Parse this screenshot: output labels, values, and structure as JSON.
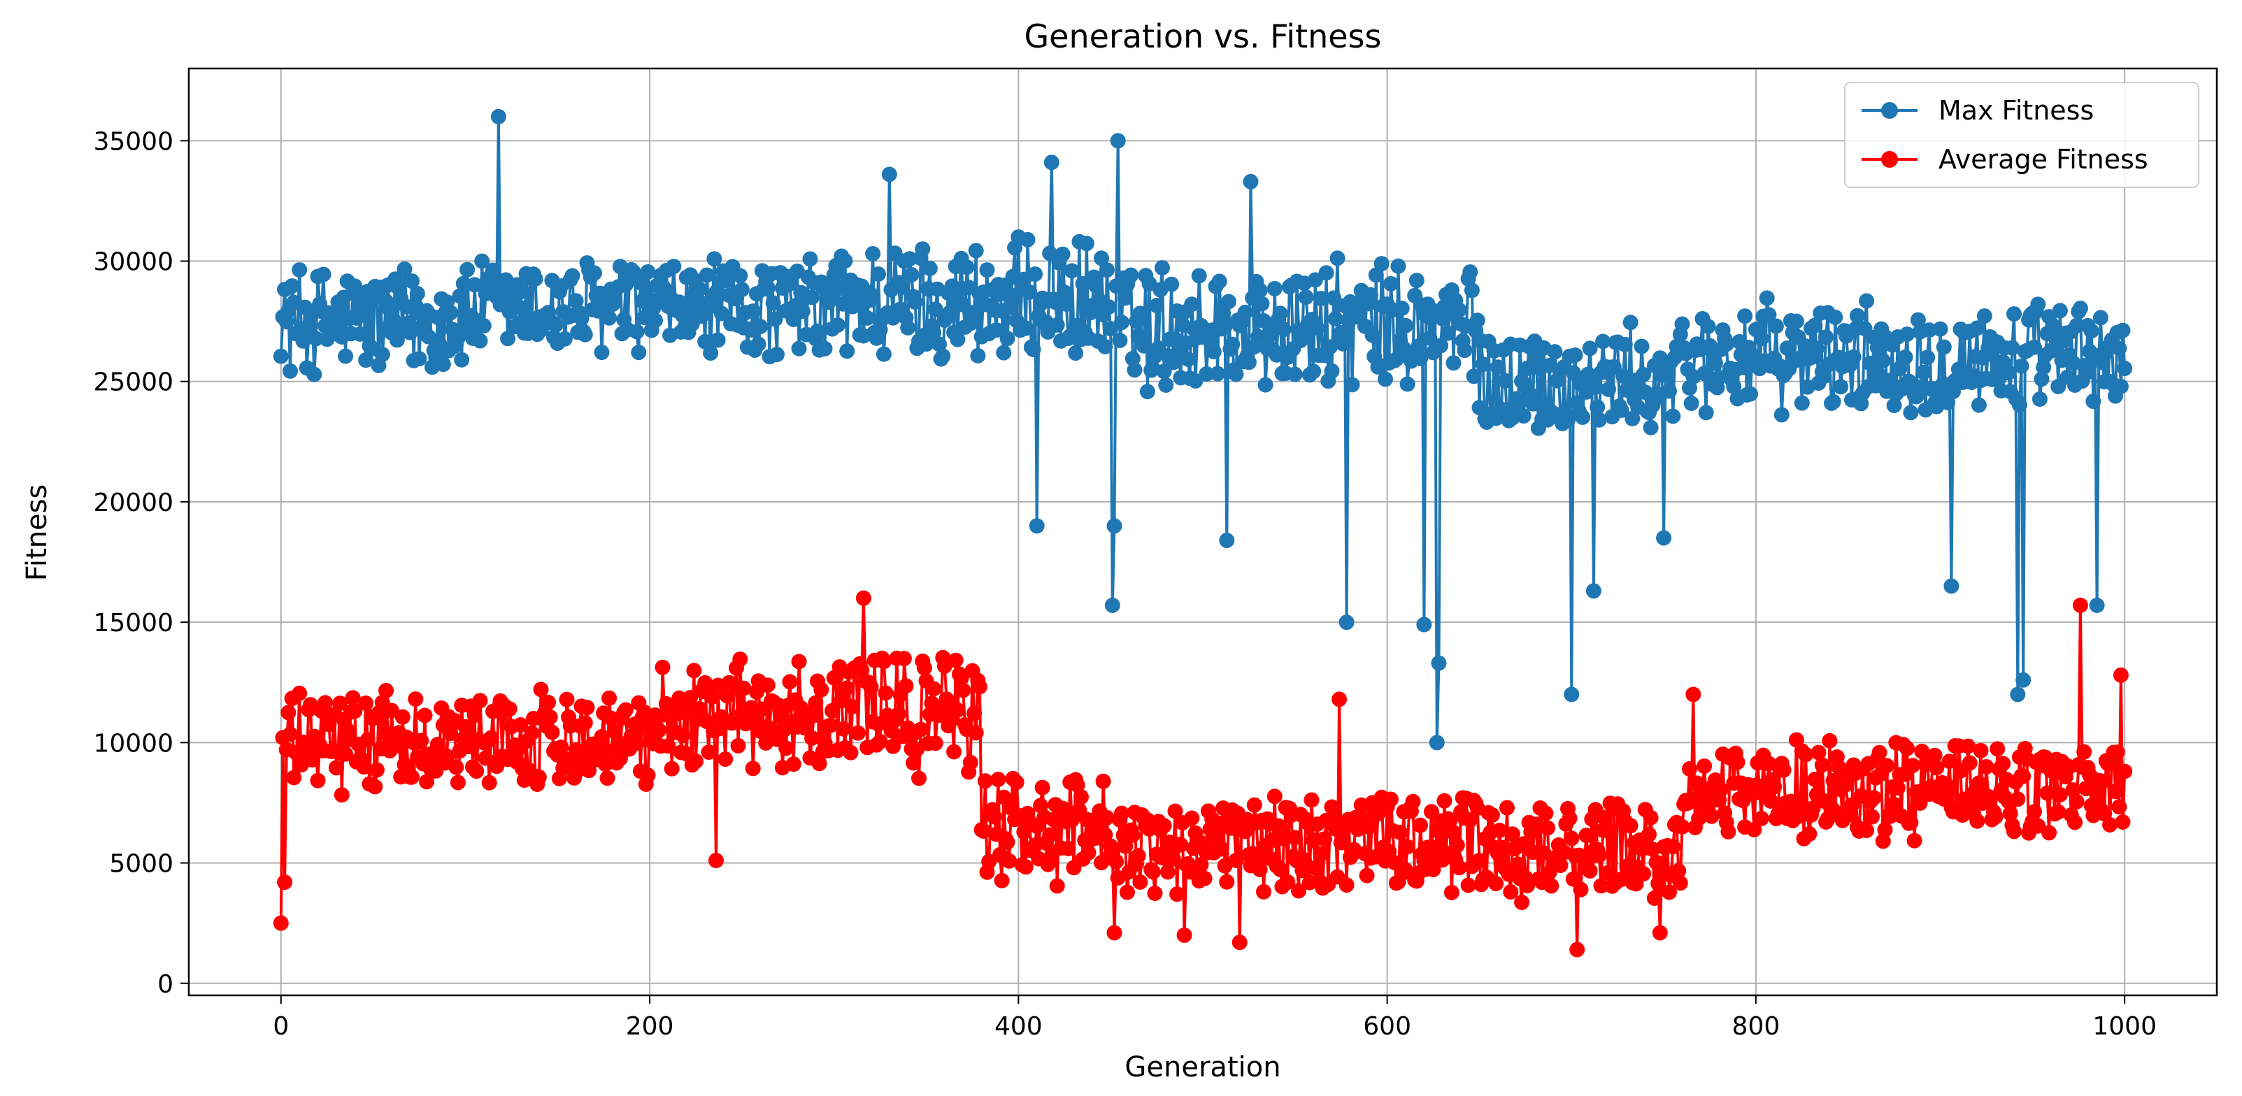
{
  "chart_data": {
    "type": "line",
    "title": "Generation vs. Fitness",
    "xlabel": "Generation",
    "ylabel": "Fitness",
    "xlim": [
      -50,
      1050
    ],
    "ylim": [
      -500,
      38000
    ],
    "xticks": [
      0,
      200,
      400,
      600,
      800,
      1000
    ],
    "yticks": [
      0,
      5000,
      10000,
      15000,
      20000,
      25000,
      30000,
      35000
    ],
    "grid": true,
    "legend_position": "top-right",
    "series": [
      {
        "name": "Max Fitness",
        "color": "#1f77b4",
        "marker": "circle",
        "segments": [
          {
            "x_start": 0,
            "x_end": 100,
            "center": 27500,
            "amp": 2500
          },
          {
            "x_start": 100,
            "x_end": 300,
            "center": 28000,
            "amp": 2300
          },
          {
            "x_start": 300,
            "x_end": 450,
            "center": 28300,
            "amp": 2800
          },
          {
            "x_start": 450,
            "x_end": 650,
            "center": 27200,
            "amp": 3000
          },
          {
            "x_start": 650,
            "x_end": 760,
            "center": 25000,
            "amp": 2500
          },
          {
            "x_start": 760,
            "x_end": 1000,
            "center": 26000,
            "amp": 2500
          }
        ],
        "outliers": [
          {
            "x": 118,
            "y": 36000
          },
          {
            "x": 451,
            "y": 15700
          },
          {
            "x": 452,
            "y": 19000
          },
          {
            "x": 454,
            "y": 35000
          },
          {
            "x": 410,
            "y": 19000
          },
          {
            "x": 513,
            "y": 18400
          },
          {
            "x": 578,
            "y": 15000
          },
          {
            "x": 620,
            "y": 14900
          },
          {
            "x": 627,
            "y": 10000
          },
          {
            "x": 628,
            "y": 13300
          },
          {
            "x": 700,
            "y": 12000
          },
          {
            "x": 712,
            "y": 16300
          },
          {
            "x": 750,
            "y": 18500
          },
          {
            "x": 906,
            "y": 16500
          },
          {
            "x": 942,
            "y": 12000
          },
          {
            "x": 945,
            "y": 12600
          },
          {
            "x": 985,
            "y": 15700
          },
          {
            "x": 330,
            "y": 33600
          },
          {
            "x": 418,
            "y": 34100
          },
          {
            "x": 526,
            "y": 33300
          }
        ]
      },
      {
        "name": "Average Fitness",
        "color": "#ff0000",
        "marker": "circle",
        "segments": [
          {
            "x_start": 0,
            "x_end": 100,
            "center": 10000,
            "amp": 2200
          },
          {
            "x_start": 100,
            "x_end": 200,
            "center": 10200,
            "amp": 2200
          },
          {
            "x_start": 200,
            "x_end": 300,
            "center": 11200,
            "amp": 2500
          },
          {
            "x_start": 300,
            "x_end": 380,
            "center": 11300,
            "amp": 2800
          },
          {
            "x_start": 380,
            "x_end": 450,
            "center": 6500,
            "amp": 2500
          },
          {
            "x_start": 450,
            "x_end": 660,
            "center": 5800,
            "amp": 2300
          },
          {
            "x_start": 660,
            "x_end": 760,
            "center": 5500,
            "amp": 2200
          },
          {
            "x_start": 760,
            "x_end": 1000,
            "center": 8000,
            "amp": 2300
          }
        ],
        "outliers": [
          {
            "x": 0,
            "y": 2500
          },
          {
            "x": 2,
            "y": 4200
          },
          {
            "x": 236,
            "y": 5100
          },
          {
            "x": 316,
            "y": 16000
          },
          {
            "x": 452,
            "y": 2100
          },
          {
            "x": 490,
            "y": 2000
          },
          {
            "x": 520,
            "y": 1700
          },
          {
            "x": 574,
            "y": 11800
          },
          {
            "x": 703,
            "y": 1400
          },
          {
            "x": 748,
            "y": 2100
          },
          {
            "x": 766,
            "y": 12000
          },
          {
            "x": 976,
            "y": 15700
          },
          {
            "x": 998,
            "y": 12800
          }
        ]
      }
    ]
  }
}
